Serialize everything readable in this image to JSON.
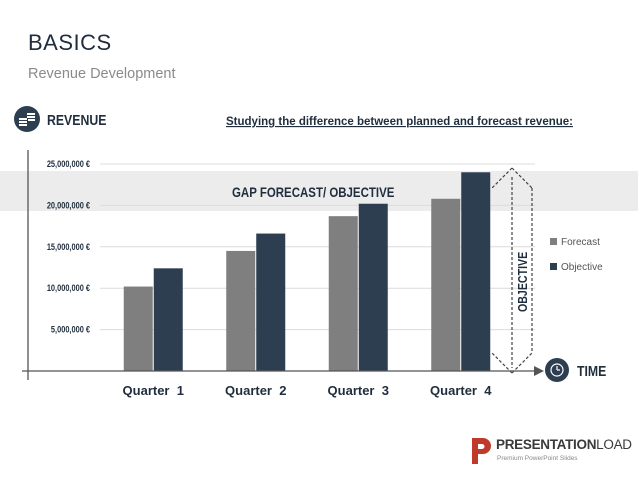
{
  "slide": {
    "title": "BASICS",
    "subtitle": "Revenue Development"
  },
  "chart_data": {
    "type": "bar",
    "title": "Studying the difference between planned and forecast revenue:",
    "xlabel": "TIME",
    "ylabel": "REVENUE",
    "categories": [
      "Quarter  1",
      "Quarter  2",
      "Quarter  3",
      "Quarter  4"
    ],
    "series": [
      {
        "name": "Forecast",
        "color": "#7f7f7f",
        "values": [
          10200000,
          14500000,
          18700000,
          20800000
        ]
      },
      {
        "name": "Objective",
        "color": "#2c3e50",
        "values": [
          12400000,
          16600000,
          20200000,
          24000000
        ]
      }
    ],
    "ylim": [
      0,
      25000000
    ],
    "y_ticks": [
      5000000,
      10000000,
      15000000,
      20000000,
      25000000
    ],
    "y_tick_labels": [
      "5,000,000 €",
      "10,000,000 €",
      "15,000,000 €",
      "20,000,000 €",
      "25,000,000 €"
    ],
    "legend_position": "right",
    "grid": true,
    "annotations": {
      "gap_label": "GAP FORECAST/ OBJECTIVE",
      "objective_label": "OBJECTIVE"
    }
  },
  "icons": {
    "revenue": "coins-icon",
    "time": "clock-icon",
    "brand": "presentationload-logo"
  },
  "brand": {
    "name_bold": "PRESENTATION",
    "name_light": "LOAD",
    "tagline": "Premium PowerPoint Slides"
  },
  "colors": {
    "forecast": "#7f7f7f",
    "objective": "#2c3e50",
    "accent_red": "#c0392b",
    "band": "#ececec"
  }
}
